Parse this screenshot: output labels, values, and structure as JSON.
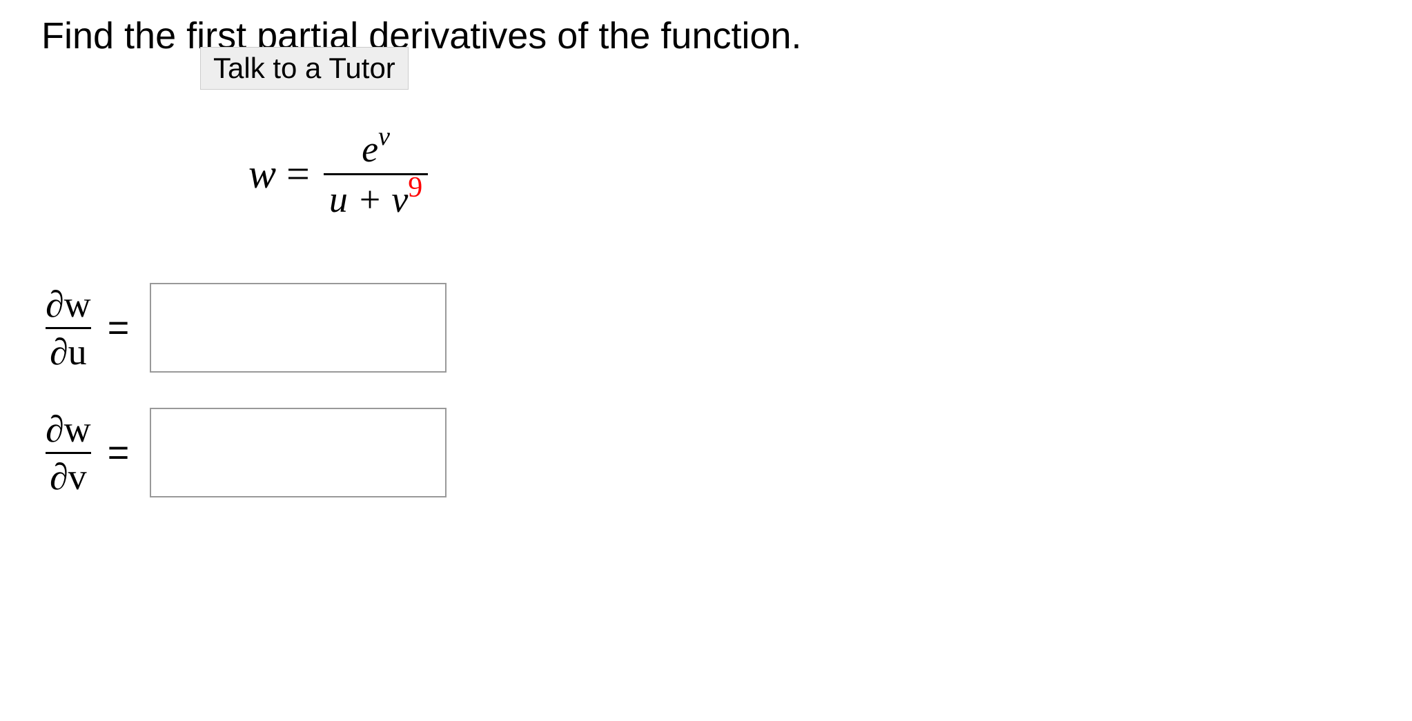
{
  "question": {
    "text": "Find the first partial derivatives of the function.",
    "tutor_button": "Talk to a Tutor"
  },
  "equation": {
    "lhs_var": "w",
    "equals": " = ",
    "numerator_base": "e",
    "numerator_exp": "v",
    "denominator_left": "u + v",
    "denominator_exp": "9",
    "exponent_color": "#ff0000"
  },
  "answers": [
    {
      "partial_top": "∂w",
      "partial_bottom": "∂u",
      "equals": "=",
      "value": ""
    },
    {
      "partial_top": "∂w",
      "partial_bottom": "∂v",
      "equals": "=",
      "value": ""
    }
  ],
  "styling": {
    "background": "#ffffff",
    "text_color": "#000000",
    "input_border": "#999999",
    "button_bg": "#eeeeee",
    "button_border": "#cccccc",
    "question_fontsize": 54,
    "equation_fontsize": 60,
    "input_width": 430,
    "input_height": 130
  }
}
